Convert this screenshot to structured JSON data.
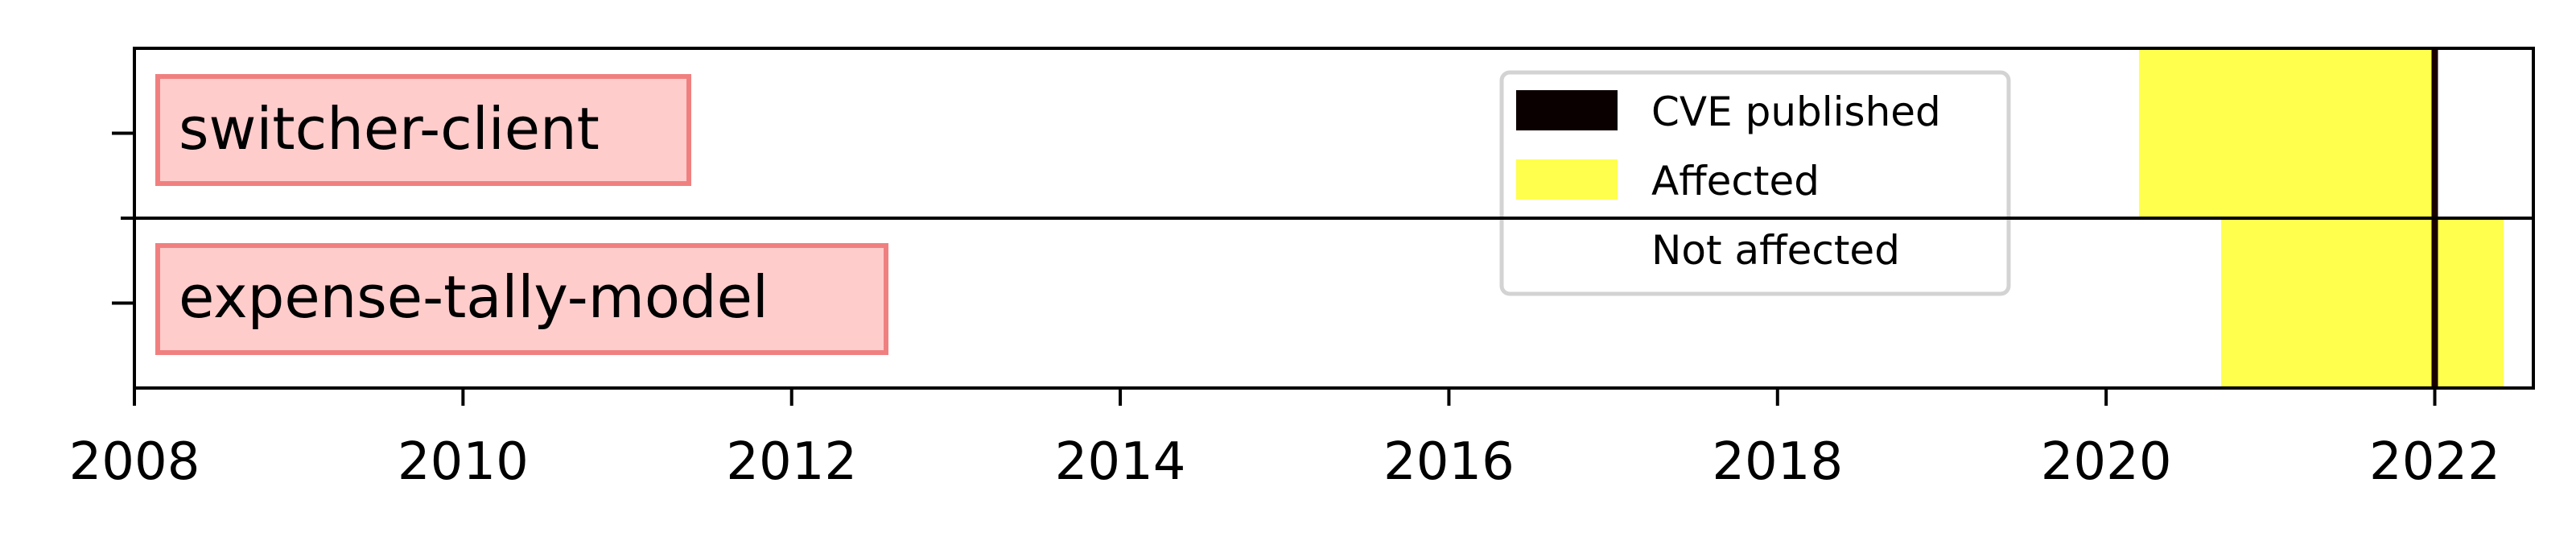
{
  "chart_data": {
    "type": "timeline",
    "x_axis": {
      "xlim": [
        2008,
        22.6
      ],
      "ticks": [
        2008,
        2010,
        2012,
        2014,
        2016,
        2018,
        2020,
        2022
      ],
      "tick_labels": [
        "2008",
        "2010",
        "2012",
        "2014",
        "2016",
        "2018",
        "2020",
        "2022"
      ]
    },
    "rows": [
      {
        "label": "switcher-client",
        "affected": [
          2020.2,
          2022.0
        ]
      },
      {
        "label": "expense-tally-model",
        "affected": [
          2020.7,
          2022.42
        ]
      }
    ],
    "cve_published": 2022.0,
    "legend": {
      "position": "top-right",
      "entries": [
        {
          "label": "CVE published",
          "color": "#0a0000"
        },
        {
          "label": "Affected",
          "color": "#ffff4d"
        },
        {
          "label": "Not affected",
          "color": "#ffffff"
        }
      ]
    },
    "grid": false,
    "colors": {
      "affected": "#ffff4d",
      "cve_line": "#1a0000",
      "label_bg": "#ffcccc",
      "label_border": "#f08080"
    }
  }
}
